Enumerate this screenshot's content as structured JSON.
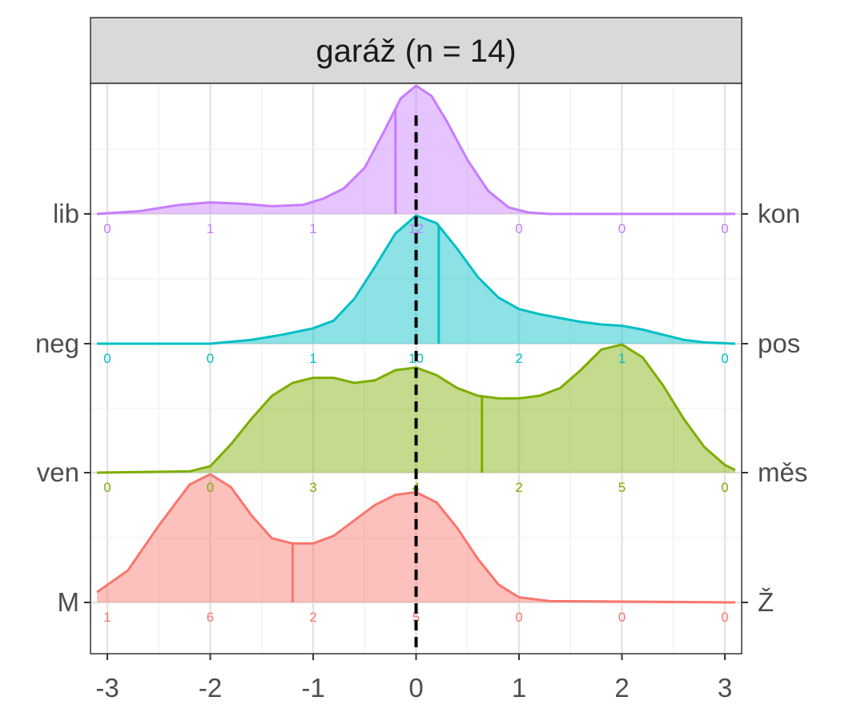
{
  "chart_data": {
    "type": "ridgeline",
    "title": "garáž (n = 14)",
    "x_ticks": [
      -3,
      -2,
      -1,
      0,
      1,
      2,
      3
    ],
    "x_range": [
      -3,
      3
    ],
    "grid": true,
    "reference_line_x": 0,
    "rows": [
      {
        "left_label": "M",
        "right_label": "Ž",
        "color": "#F8766D",
        "mean": -1.2,
        "counts": [
          1,
          6,
          2,
          5,
          0,
          0,
          0
        ],
        "density": [
          [
            -3.1,
            0.08
          ],
          [
            -2.8,
            0.25
          ],
          [
            -2.5,
            0.6
          ],
          [
            -2.2,
            0.92
          ],
          [
            -2.0,
            1.0
          ],
          [
            -1.8,
            0.9
          ],
          [
            -1.6,
            0.68
          ],
          [
            -1.4,
            0.5
          ],
          [
            -1.2,
            0.46
          ],
          [
            -1.0,
            0.46
          ],
          [
            -0.8,
            0.52
          ],
          [
            -0.6,
            0.64
          ],
          [
            -0.4,
            0.76
          ],
          [
            -0.2,
            0.84
          ],
          [
            0.0,
            0.86
          ],
          [
            0.2,
            0.78
          ],
          [
            0.4,
            0.58
          ],
          [
            0.6,
            0.34
          ],
          [
            0.8,
            0.14
          ],
          [
            1.0,
            0.04
          ],
          [
            1.3,
            0.01
          ],
          [
            3.1,
            0.0
          ]
        ]
      },
      {
        "left_label": "ven",
        "right_label": "měs",
        "color": "#7CAE00",
        "mean": 0.64,
        "counts": [
          0,
          0,
          3,
          4,
          2,
          5,
          0
        ],
        "density": [
          [
            -3.1,
            0.0
          ],
          [
            -2.2,
            0.01
          ],
          [
            -2.0,
            0.05
          ],
          [
            -1.8,
            0.22
          ],
          [
            -1.6,
            0.42
          ],
          [
            -1.4,
            0.6
          ],
          [
            -1.2,
            0.7
          ],
          [
            -1.0,
            0.74
          ],
          [
            -0.8,
            0.74
          ],
          [
            -0.6,
            0.7
          ],
          [
            -0.4,
            0.72
          ],
          [
            -0.2,
            0.8
          ],
          [
            0.0,
            0.82
          ],
          [
            0.2,
            0.76
          ],
          [
            0.4,
            0.66
          ],
          [
            0.6,
            0.6
          ],
          [
            0.8,
            0.58
          ],
          [
            1.0,
            0.58
          ],
          [
            1.2,
            0.6
          ],
          [
            1.4,
            0.66
          ],
          [
            1.6,
            0.8
          ],
          [
            1.8,
            0.96
          ],
          [
            2.0,
            1.0
          ],
          [
            2.2,
            0.9
          ],
          [
            2.4,
            0.68
          ],
          [
            2.6,
            0.42
          ],
          [
            2.8,
            0.2
          ],
          [
            3.0,
            0.06
          ],
          [
            3.1,
            0.02
          ]
        ]
      },
      {
        "left_label": "neg",
        "right_label": "pos",
        "color": "#00BFC4",
        "mean": 0.22,
        "counts": [
          0,
          0,
          1,
          10,
          2,
          1,
          0
        ],
        "density": [
          [
            -3.1,
            0.0
          ],
          [
            -2.0,
            0.0
          ],
          [
            -1.6,
            0.03
          ],
          [
            -1.3,
            0.07
          ],
          [
            -1.0,
            0.12
          ],
          [
            -0.8,
            0.18
          ],
          [
            -0.6,
            0.35
          ],
          [
            -0.4,
            0.6
          ],
          [
            -0.2,
            0.86
          ],
          [
            0.0,
            1.0
          ],
          [
            0.2,
            0.94
          ],
          [
            0.4,
            0.74
          ],
          [
            0.6,
            0.52
          ],
          [
            0.8,
            0.36
          ],
          [
            1.0,
            0.27
          ],
          [
            1.2,
            0.23
          ],
          [
            1.4,
            0.2
          ],
          [
            1.6,
            0.17
          ],
          [
            1.8,
            0.15
          ],
          [
            2.0,
            0.14
          ],
          [
            2.2,
            0.11
          ],
          [
            2.4,
            0.07
          ],
          [
            2.6,
            0.03
          ],
          [
            2.8,
            0.01
          ],
          [
            3.1,
            0.0
          ]
        ]
      },
      {
        "left_label": "lib",
        "right_label": "kon",
        "color": "#C77CFF",
        "mean": -0.2,
        "counts": [
          0,
          1,
          1,
          12,
          0,
          0,
          0
        ],
        "density": [
          [
            -3.1,
            0.0
          ],
          [
            -2.7,
            0.02
          ],
          [
            -2.3,
            0.07
          ],
          [
            -2.0,
            0.09
          ],
          [
            -1.7,
            0.08
          ],
          [
            -1.4,
            0.06
          ],
          [
            -1.1,
            0.07
          ],
          [
            -0.9,
            0.12
          ],
          [
            -0.7,
            0.2
          ],
          [
            -0.5,
            0.36
          ],
          [
            -0.3,
            0.66
          ],
          [
            -0.15,
            0.9
          ],
          [
            0.0,
            1.0
          ],
          [
            0.15,
            0.92
          ],
          [
            0.3,
            0.72
          ],
          [
            0.5,
            0.42
          ],
          [
            0.7,
            0.18
          ],
          [
            0.9,
            0.05
          ],
          [
            1.1,
            0.01
          ],
          [
            1.3,
            0.0
          ],
          [
            3.1,
            0.0
          ]
        ]
      }
    ]
  }
}
